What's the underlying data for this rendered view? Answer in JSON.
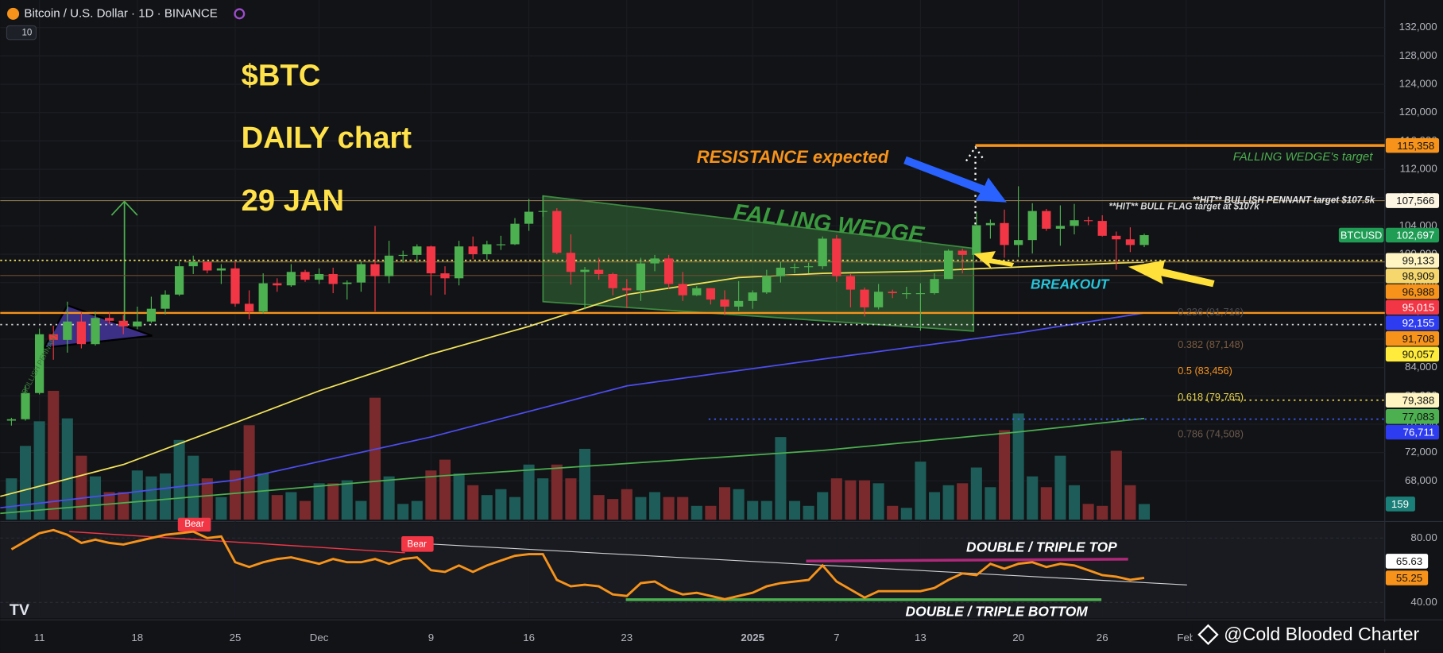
{
  "header": {
    "title": "Bitcoin / U.S. Dollar · 1D · BINANCE",
    "indicator": "10"
  },
  "watermark": "@Cold Blooded Charter",
  "chart_data": [
    {
      "type": "candlestick",
      "up_color": "#4caf50",
      "down_color": "#f23645",
      "volume_up_color": "#1d5c58",
      "volume_down_color": "#7a2a2c",
      "xlim": [
        -0.8,
        98.2
      ],
      "xticks": [
        {
          "value": 2,
          "label": "11"
        },
        {
          "value": 9,
          "label": "18"
        },
        {
          "value": 16,
          "label": "25"
        },
        {
          "value": 22,
          "label": "Dec"
        },
        {
          "value": 30,
          "label": "9"
        },
        {
          "value": 37,
          "label": "16"
        },
        {
          "value": 44,
          "label": "23"
        },
        {
          "value": 53,
          "label": "2025"
        },
        {
          "value": 59,
          "label": "7"
        },
        {
          "value": 65,
          "label": "13"
        },
        {
          "value": 72,
          "label": "20"
        },
        {
          "value": 78,
          "label": "26"
        },
        {
          "value": 84,
          "label": "Feb"
        }
      ],
      "ylim": [
        62520,
        135896
      ],
      "yticks": [
        {
          "value": 132000,
          "label": "132,000"
        },
        {
          "value": 128000,
          "label": "128,000"
        },
        {
          "value": 124000,
          "label": "124,000"
        },
        {
          "value": 120000,
          "label": "120,000"
        },
        {
          "value": 116000,
          "label": "116,000"
        },
        {
          "value": 112000,
          "label": "112,000"
        },
        {
          "value": 108000,
          "label": "108,000"
        },
        {
          "value": 104000,
          "label": "104,000"
        },
        {
          "value": 100000,
          "label": "100,000"
        },
        {
          "value": 96000,
          "label": "96,000"
        },
        {
          "value": 92000,
          "label": "92,000"
        },
        {
          "value": 88000,
          "label": "88,000"
        },
        {
          "value": 84000,
          "label": "84,000"
        },
        {
          "value": 80000,
          "label": "80,000"
        },
        {
          "value": 76000,
          "label": "76,000"
        },
        {
          "value": 72000,
          "label": "72,000"
        },
        {
          "value": 68000,
          "label": "68,000"
        }
      ],
      "ohlc": [
        [
          76500,
          76900,
          75800,
          76700
        ],
        [
          76700,
          81500,
          76500,
          80400
        ],
        [
          80400,
          89500,
          80200,
          88700
        ],
        [
          88700,
          89900,
          85100,
          87900
        ],
        [
          87900,
          93300,
          86100,
          90500
        ],
        [
          90500,
          91800,
          86700,
          87300
        ],
        [
          87300,
          91900,
          87100,
          91000
        ],
        [
          91000,
          91800,
          90100,
          90600
        ],
        [
          90600,
          91400,
          88700,
          89800
        ],
        [
          89800,
          92600,
          89400,
          90500
        ],
        [
          90500,
          94000,
          90300,
          92300
        ],
        [
          92300,
          94900,
          91500,
          94300
        ],
        [
          94300,
          99000,
          94100,
          98300
        ],
        [
          98300,
          99800,
          97200,
          98900
        ],
        [
          98900,
          98900,
          97300,
          97700
        ],
        [
          97700,
          98600,
          95800,
          98000
        ],
        [
          98000,
          98900,
          92600,
          93000
        ],
        [
          93000,
          94900,
          90800,
          91900
        ],
        [
          91900,
          97300,
          91600,
          95900
        ],
        [
          95900,
          96600,
          94700,
          95600
        ],
        [
          95600,
          98600,
          95400,
          97500
        ],
        [
          97500,
          97800,
          96100,
          96400
        ],
        [
          96400,
          98000,
          95800,
          97200
        ],
        [
          97200,
          98100,
          94500,
          95800
        ],
        [
          95800,
          96300,
          93600,
          96000
        ],
        [
          96000,
          99000,
          94700,
          98600
        ],
        [
          98600,
          104000,
          91900,
          96900
        ],
        [
          96900,
          101900,
          95900,
          99800
        ],
        [
          99800,
          100500,
          98800,
          99900
        ],
        [
          99900,
          101400,
          98800,
          101100
        ],
        [
          101100,
          101200,
          94200,
          97300
        ],
        [
          97300,
          98300,
          94300,
          96600
        ],
        [
          96600,
          101900,
          95600,
          101100
        ],
        [
          101100,
          102500,
          99300,
          100000
        ],
        [
          100000,
          101900,
          99200,
          101400
        ],
        [
          101400,
          102600,
          100600,
          101400
        ],
        [
          101400,
          105100,
          101300,
          104300
        ],
        [
          104300,
          107800,
          103300,
          106000
        ],
        [
          106000,
          108300,
          105300,
          106100
        ],
        [
          106100,
          106500,
          100000,
          100200
        ],
        [
          100200,
          102800,
          95700,
          97500
        ],
        [
          97500,
          98200,
          92200,
          97800
        ],
        [
          97800,
          99500,
          96400,
          97200
        ],
        [
          97200,
          97400,
          94200,
          95200
        ],
        [
          95200,
          96500,
          92400,
          94900
        ],
        [
          94900,
          99500,
          93400,
          98700
        ],
        [
          98700,
          99900,
          97600,
          99400
        ],
        [
          99400,
          99900,
          95100,
          95800
        ],
        [
          95800,
          97500,
          93400,
          94200
        ],
        [
          94200,
          95500,
          94100,
          95200
        ],
        [
          95200,
          95200,
          92900,
          93600
        ],
        [
          93600,
          94900,
          91400,
          92600
        ],
        [
          92600,
          96200,
          92000,
          93400
        ],
        [
          93400,
          94900,
          92300,
          94600
        ],
        [
          94600,
          97800,
          94400,
          96900
        ],
        [
          96900,
          98900,
          96000,
          98100
        ],
        [
          98100,
          98700,
          97300,
          98200
        ],
        [
          98200,
          98800,
          97300,
          98300
        ],
        [
          98300,
          102500,
          97900,
          102200
        ],
        [
          102200,
          102700,
          96100,
          96900
        ],
        [
          96900,
          97200,
          92500,
          95000
        ],
        [
          95000,
          95300,
          91200,
          92500
        ],
        [
          92500,
          95800,
          92200,
          94700
        ],
        [
          94700,
          95000,
          93800,
          94500
        ],
        [
          94500,
          95400,
          93700,
          94500
        ],
        [
          94500,
          95900,
          89200,
          94500
        ],
        [
          94500,
          97300,
          94300,
          96500
        ],
        [
          96500,
          100700,
          96500,
          100500
        ],
        [
          100500,
          100800,
          97300,
          99900
        ],
        [
          99900,
          105900,
          99900,
          104100
        ],
        [
          104100,
          104900,
          102200,
          104400
        ],
        [
          104400,
          106300,
          99500,
          101300
        ],
        [
          101300,
          109600,
          99600,
          102000
        ],
        [
          102000,
          107200,
          100100,
          106100
        ],
        [
          106100,
          106400,
          103300,
          103600
        ],
        [
          103600,
          106900,
          101200,
          104000
        ],
        [
          104000,
          107100,
          102800,
          104800
        ],
        [
          104800,
          105300,
          104100,
          104700
        ],
        [
          104700,
          105500,
          102500,
          102600
        ],
        [
          102600,
          103200,
          97800,
          102100
        ],
        [
          102100,
          103800,
          100300,
          101300
        ],
        [
          101300,
          102900,
          101000,
          102697
        ]
      ],
      "volume": [
        420,
        750,
        1000,
        1310,
        1030,
        650,
        440,
        280,
        280,
        500,
        440,
        470,
        810,
        650,
        420,
        230,
        500,
        960,
        470,
        250,
        280,
        190,
        370,
        370,
        400,
        190,
        1240,
        440,
        160,
        190,
        500,
        610,
        470,
        350,
        250,
        310,
        230,
        560,
        420,
        560,
        420,
        720,
        250,
        210,
        310,
        230,
        280,
        230,
        230,
        140,
        140,
        330,
        310,
        190,
        190,
        840,
        190,
        140,
        280,
        420,
        400,
        400,
        370,
        140,
        120,
        590,
        280,
        350,
        370,
        530,
        330,
        910,
        1080,
        440,
        330,
        650,
        350,
        160,
        140,
        700,
        350,
        159
      ],
      "vlim": [
        0,
        5284
      ],
      "volume_tag": {
        "value": 159,
        "color": "#1a7f78",
        "text_color": "#ffffff"
      },
      "series": [
        {
          "color": "#f2e35c",
          "x": [
            -0.8,
            8,
            16,
            22,
            30,
            37,
            44,
            52,
            58,
            65,
            72,
            81
          ],
          "values": [
            65800,
            70300,
            76200,
            80700,
            85900,
            89800,
            94300,
            96700,
            97300,
            97600,
            98200,
            98900
          ]
        },
        {
          "color": "#4d4df2",
          "x": [
            -0.8,
            16,
            30,
            44,
            58,
            72,
            81
          ],
          "values": [
            64200,
            68100,
            74200,
            81400,
            85200,
            88900,
            91700
          ]
        },
        {
          "color": "#4caf50",
          "x": [
            -0.8,
            30,
            58,
            72,
            81
          ],
          "values": [
            63400,
            68600,
            72300,
            74900,
            76800
          ]
        }
      ],
      "price_tags": [
        {
          "value": 115358,
          "label": "115,358",
          "color": "#f7931a",
          "text_color": "#131313"
        },
        {
          "value": 107566,
          "label": "107,566",
          "color": "#fdf6e3",
          "text_color": "#131313"
        },
        {
          "value": 102697,
          "label": "102,697",
          "color": "#1f9d55",
          "text_color": "#ffffff",
          "name": "BTCUSD"
        },
        {
          "value": 99133,
          "label": "99,133",
          "color": "#fff5c2",
          "text_color": "#131313"
        },
        {
          "value": 98909,
          "label": "98,909",
          "color": "#f5d76e",
          "text_color": "#131313"
        },
        {
          "value": 96988,
          "label": "96,988",
          "color": "#f7931a",
          "text_color": "#131313"
        },
        {
          "value": 95015,
          "label": "95,015",
          "color": "#f23645",
          "text_color": "#ffffff"
        },
        {
          "value": 92155,
          "label": "92,155",
          "color": "#2d3cf0",
          "text_color": "#ffffff"
        },
        {
          "value": 91708,
          "label": "91,708",
          "color": "#f7931a",
          "text_color": "#131313"
        },
        {
          "value": 90057,
          "label": "90,057",
          "color": "#ffeb3b",
          "text_color": "#131313"
        },
        {
          "value": 79388,
          "label": "79,388",
          "color": "#fff5c2",
          "text_color": "#131313"
        },
        {
          "value": 77083,
          "label": "77,083",
          "color": "#4caf50",
          "text_color": "#131313"
        },
        {
          "value": 76711,
          "label": "76,711",
          "color": "#2d3cf0",
          "text_color": "#ffffff"
        }
      ],
      "fib_levels": [
        {
          "label": "0.236 (91,716)",
          "value": 91716,
          "color": "#4a4d55"
        },
        {
          "label": "0.382 (87,148)",
          "value": 87148,
          "color": "#7a5b43"
        },
        {
          "label": "0.5 (83,456)",
          "value": 83456,
          "color": "#f7931a"
        },
        {
          "label": "0.618 (79,765)",
          "value": 79765,
          "color": "#e8d44d"
        },
        {
          "label": "0.786 (74,508)",
          "value": 74508,
          "color": "#6b5a4e"
        }
      ],
      "annotations": {
        "ticker": "$BTC",
        "timeframe": "DAILY chart",
        "date": "29 JAN",
        "resistance": "RESISTANCE expected",
        "wedge": "FALLING WEDGE",
        "breakout": "BREAKOUT",
        "wedge_target": "FALLING WEDGE's target",
        "pennant_hit": "**HIT** BULLISH PENNANT target $107.5k",
        "flag_hit": "**HIT** BULL FLAG target at $107k",
        "pennant": "BULLISH PENNANT"
      }
    },
    {
      "type": "line",
      "color": "#f7931a",
      "values": [
        73,
        78,
        83,
        85,
        82,
        77,
        79,
        77,
        76,
        78,
        80,
        82,
        83,
        84,
        80,
        81,
        65,
        62,
        65,
        67,
        68,
        66,
        64,
        67,
        65,
        65,
        67,
        64,
        67,
        68,
        60,
        59,
        63,
        59,
        63,
        66,
        69,
        70,
        70,
        54,
        50,
        51,
        50,
        45,
        44,
        52,
        53,
        48,
        45,
        46,
        44,
        42,
        44,
        46,
        50,
        52,
        53,
        54,
        63,
        53,
        48,
        43,
        47,
        47,
        47,
        47,
        49,
        54,
        58,
        57,
        64,
        61,
        64,
        65,
        62,
        64,
        63,
        60,
        57,
        56,
        54,
        55.25
      ],
      "ylim": [
        30.3,
        88.6
      ],
      "yticks": [
        {
          "value": 80,
          "label": "80.00"
        },
        {
          "value": 40,
          "label": "40.00"
        }
      ],
      "tags": [
        {
          "value": 65.63,
          "label": "65.63",
          "color": "#ffffff",
          "text_color": "#131313"
        },
        {
          "value": 55.25,
          "label": "55.25",
          "color": "#f7931a",
          "text_color": "#131313"
        }
      ],
      "annotations": {
        "top": "DOUBLE / TRIPLE TOP",
        "bottom": "DOUBLE / TRIPLE BOTTOM",
        "bear": [
          "Bear",
          "Bear"
        ]
      }
    }
  ]
}
